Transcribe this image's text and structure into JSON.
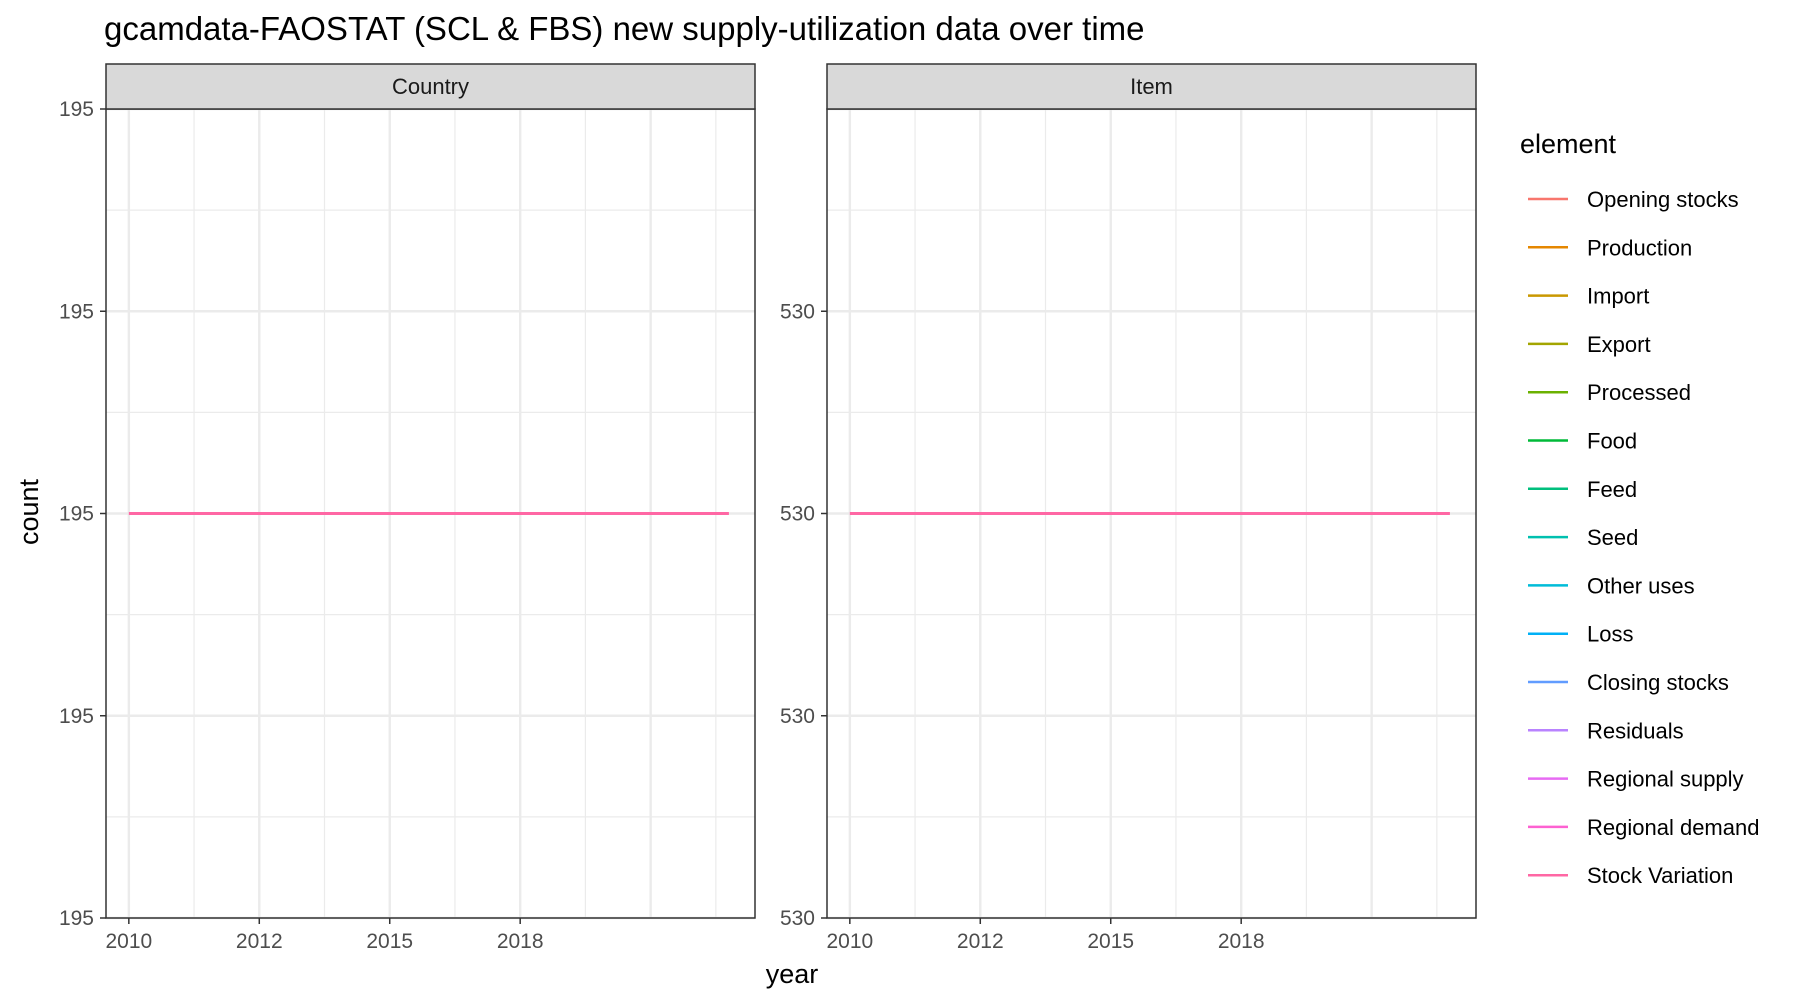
{
  "chart_data": {
    "type": "line",
    "title": "gcamdata-FAOSTAT (SCL & FBS) new supply-utilization data over time",
    "xlabel": "year",
    "ylabel": "count",
    "x_ticks": [
      "2010",
      "2012",
      "2015",
      "2018"
    ],
    "x_range": [
      2009.65,
      2019.6
    ],
    "legend": {
      "title": "element",
      "placement": "right"
    },
    "elements": [
      {
        "name": "Opening stocks",
        "color": "#F8766D"
      },
      {
        "name": "Production",
        "color": "#E58700"
      },
      {
        "name": "Import",
        "color": "#C99800"
      },
      {
        "name": "Export",
        "color": "#A3A500"
      },
      {
        "name": "Processed",
        "color": "#6BB100"
      },
      {
        "name": "Food",
        "color": "#00BA38"
      },
      {
        "name": "Feed",
        "color": "#00BF7D"
      },
      {
        "name": "Seed",
        "color": "#00C0AF"
      },
      {
        "name": "Other uses",
        "color": "#00BCD8"
      },
      {
        "name": "Loss",
        "color": "#00B0F6"
      },
      {
        "name": "Closing stocks",
        "color": "#619CFF"
      },
      {
        "name": "Residuals",
        "color": "#B983FF"
      },
      {
        "name": "Regional supply",
        "color": "#E76BF3"
      },
      {
        "name": "Regional demand",
        "color": "#FD61D1"
      },
      {
        "name": "Stock Variation",
        "color": "#FF67A4"
      }
    ],
    "panels": [
      {
        "strip": "Country",
        "y_tick_labels": [
          "195",
          "195",
          "195",
          "195",
          "195"
        ],
        "ylim": [
          194.6,
          195.4
        ],
        "series_x": [
          2010,
          2019.2
        ],
        "series_y": 195
      },
      {
        "strip": "Item",
        "y_tick_labels": [
          "530",
          "530",
          "530",
          "530"
        ],
        "ylim": [
          529.6,
          530.4
        ],
        "y_tick_values": [
          529.6,
          529.8,
          530.0,
          530.2
        ],
        "series_x": [
          2010,
          2019.2
        ],
        "series_y": 530
      }
    ]
  }
}
